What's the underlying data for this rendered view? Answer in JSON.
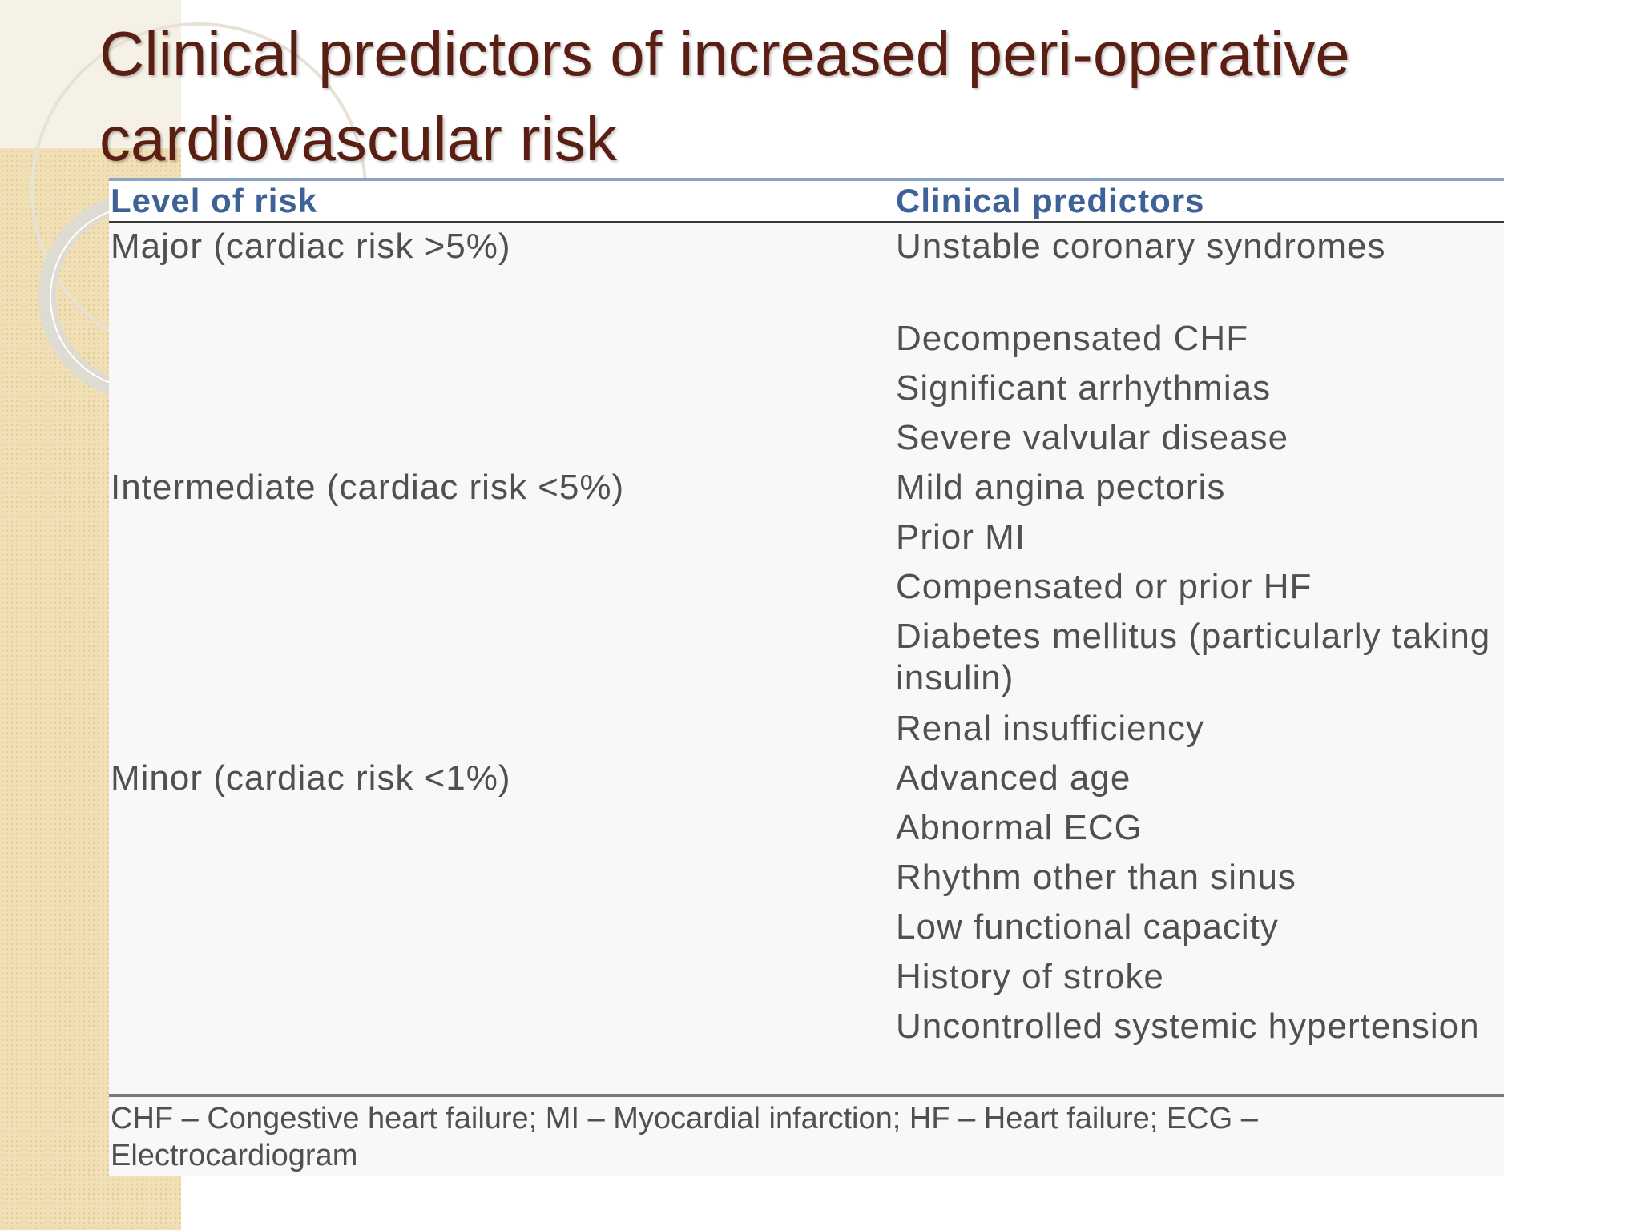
{
  "slide": {
    "title": "Clinical predictors of increased peri-operative cardiovascular risk"
  },
  "table": {
    "headers": {
      "level": "Level of risk",
      "predictors": "Clinical predictors"
    },
    "rows": [
      {
        "level": "Major (cardiac risk >5%)",
        "predictor": "Unstable coronary syndromes"
      },
      {
        "level": "",
        "predictor": "Decompensated CHF"
      },
      {
        "level": "",
        "predictor": "Significant arrhythmias"
      },
      {
        "level": "",
        "predictor": "Severe valvular disease"
      },
      {
        "level": "Intermediate (cardiac risk <5%)",
        "predictor": "Mild angina pectoris"
      },
      {
        "level": "",
        "predictor": "Prior MI"
      },
      {
        "level": "",
        "predictor": "Compensated or prior HF"
      },
      {
        "level": "",
        "predictor": "Diabetes mellitus (particularly taking insulin)"
      },
      {
        "level": "",
        "predictor": "Renal insufficiency"
      },
      {
        "level": "Minor (cardiac risk <1%)",
        "predictor": "Advanced age"
      },
      {
        "level": "",
        "predictor": "Abnormal ECG"
      },
      {
        "level": "",
        "predictor": "Rhythm other than sinus"
      },
      {
        "level": "",
        "predictor": "Low functional capacity"
      },
      {
        "level": "",
        "predictor": "History of stroke"
      },
      {
        "level": "",
        "predictor": "Uncontrolled systemic hypertension"
      }
    ],
    "footnote": "CHF – Congestive heart failure; MI – Myocardial infarction; HF – Heart failure; ECG – Electrocardiogram"
  }
}
